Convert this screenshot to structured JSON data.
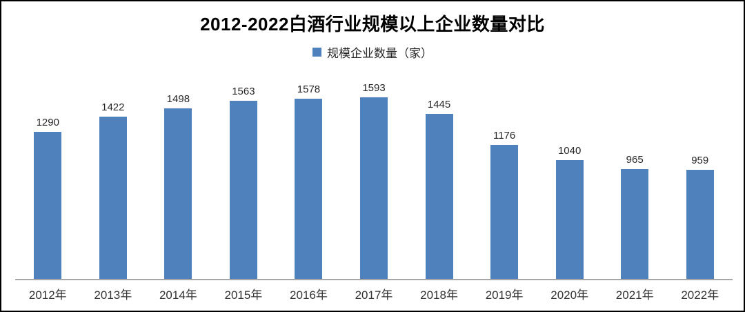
{
  "title": "2012-2022白酒行业规模以上企业数量对比",
  "legend": {
    "label": "规模企业数量（家）",
    "swatch_color": "#4F81BD"
  },
  "colors": {
    "bar": "#4F81BD",
    "axis_line": "#A6A6A6",
    "title_text": "#000000",
    "value_label_text": "#262626",
    "tick_label_text": "#333333"
  },
  "chart_data": {
    "type": "bar",
    "title": "2012-2022白酒行业规模以上企业数量对比",
    "categories": [
      "2012年",
      "2013年",
      "2014年",
      "2015年",
      "2016年",
      "2017年",
      "2018年",
      "2019年",
      "2020年",
      "2021年",
      "2022年"
    ],
    "series": [
      {
        "name": "规模企业数量（家）",
        "values": [
          1290,
          1422,
          1498,
          1563,
          1578,
          1593,
          1445,
          1176,
          1040,
          965,
          959
        ]
      }
    ],
    "xlabel": "",
    "ylabel": "",
    "ylim": [
      0,
      1700
    ],
    "grid": false,
    "legend_position": "top",
    "data_labels": true,
    "bar_color": "#4F81BD"
  }
}
